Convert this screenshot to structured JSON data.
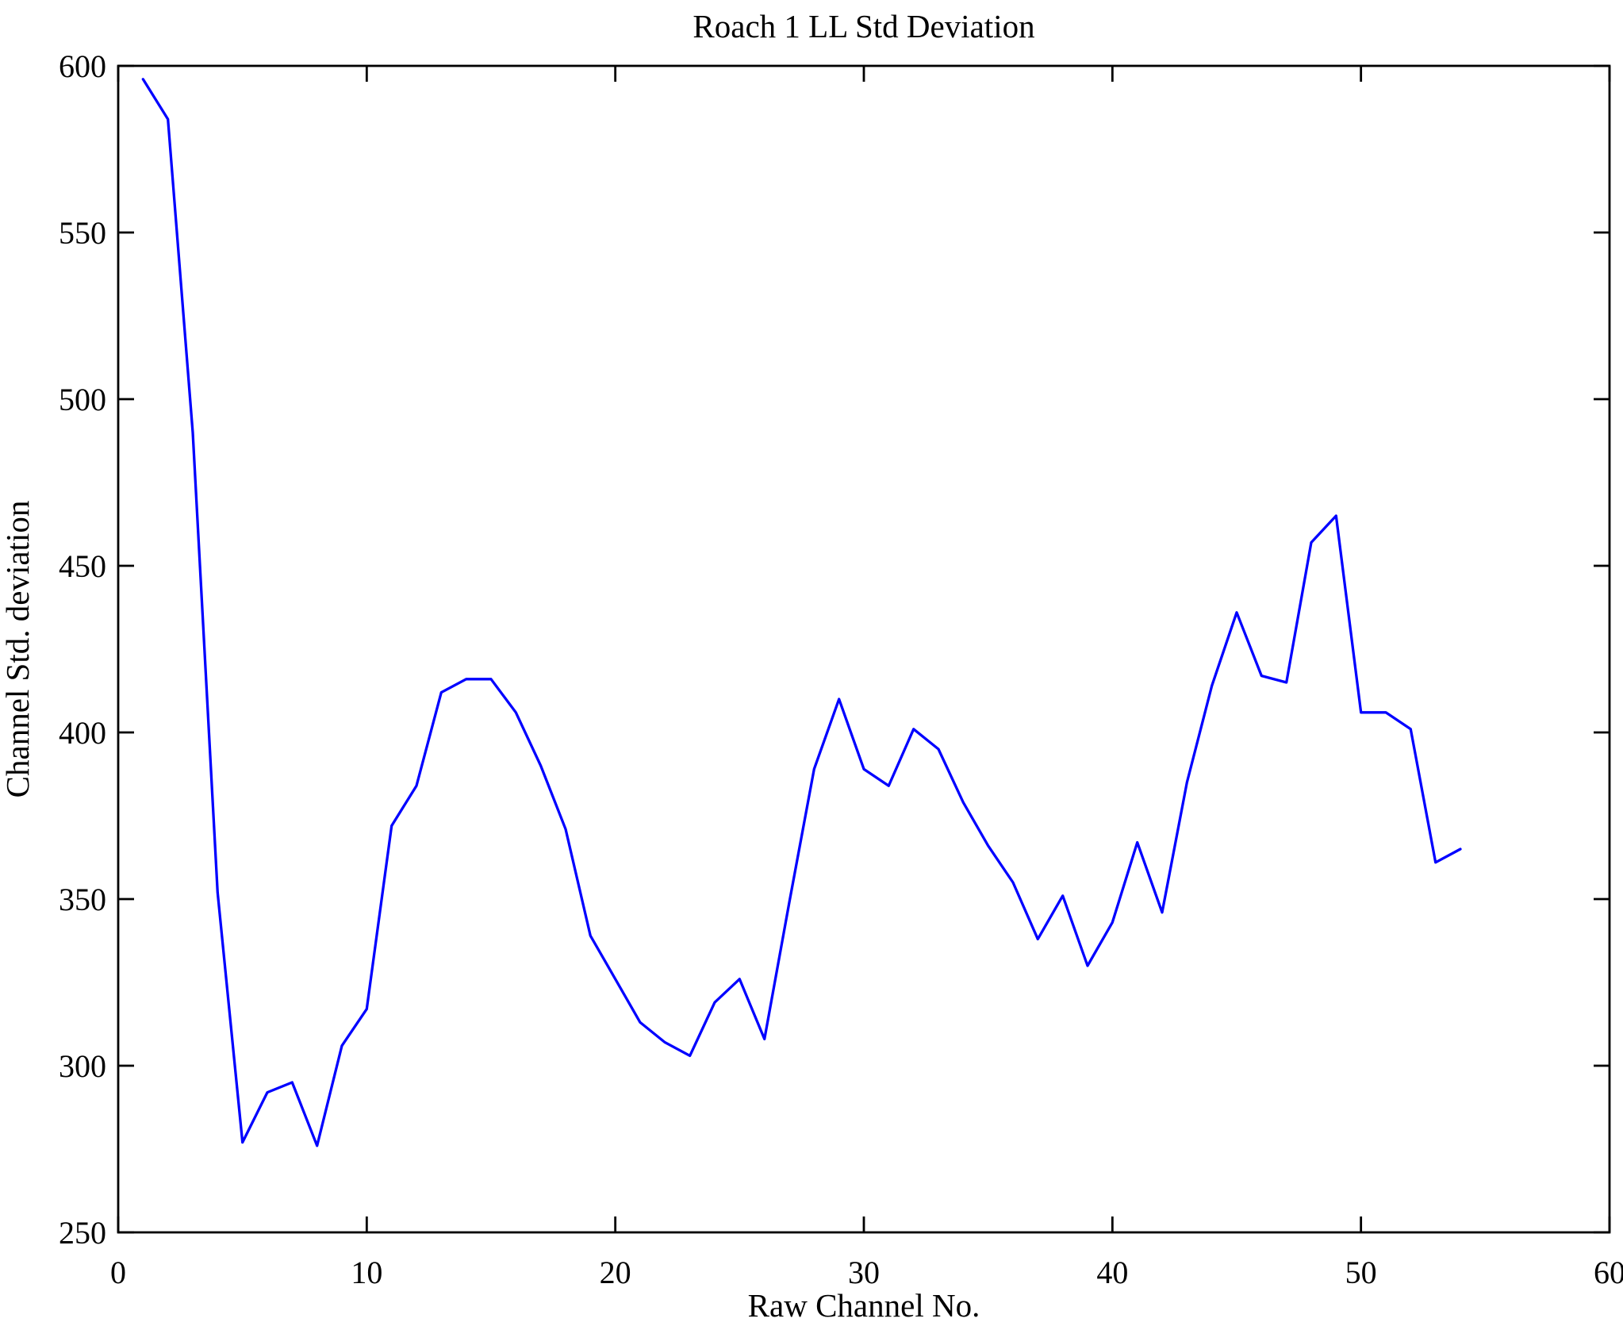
{
  "chart_data": {
    "type": "line",
    "title": "Roach 1 LL Std Deviation",
    "xlabel": "Raw Channel No.",
    "ylabel": "Channel Std. deviation",
    "xlim": [
      0,
      60
    ],
    "ylim": [
      250,
      600
    ],
    "xticks": [
      0,
      10,
      20,
      30,
      40,
      50,
      60
    ],
    "yticks": [
      250,
      300,
      350,
      400,
      450,
      500,
      550,
      600
    ],
    "grid": false,
    "legend": "none",
    "line_color": "#0000FF",
    "axis_color": "#000000",
    "background_color": "#FFFFFF",
    "x": [
      1,
      2,
      3,
      4,
      5,
      6,
      7,
      8,
      9,
      10,
      11,
      12,
      13,
      14,
      15,
      16,
      17,
      18,
      19,
      20,
      21,
      22,
      23,
      24,
      25,
      26,
      27,
      28,
      29,
      30,
      31,
      32,
      33,
      34,
      35,
      36,
      37,
      38,
      39,
      40,
      41,
      42,
      43,
      44,
      45,
      46,
      47,
      48,
      49,
      50,
      51,
      52,
      53,
      54
    ],
    "values": [
      596,
      584,
      490,
      352,
      277,
      292,
      295,
      276,
      306,
      317,
      372,
      384,
      412,
      416,
      416,
      406,
      390,
      371,
      339,
      326,
      313,
      307,
      303,
      319,
      326,
      308,
      349,
      389,
      410,
      389,
      384,
      401,
      395,
      379,
      366,
      355,
      338,
      351,
      330,
      343,
      367,
      346,
      385,
      414,
      436,
      417,
      415,
      457,
      465,
      406,
      406,
      401,
      361,
      365
    ]
  }
}
